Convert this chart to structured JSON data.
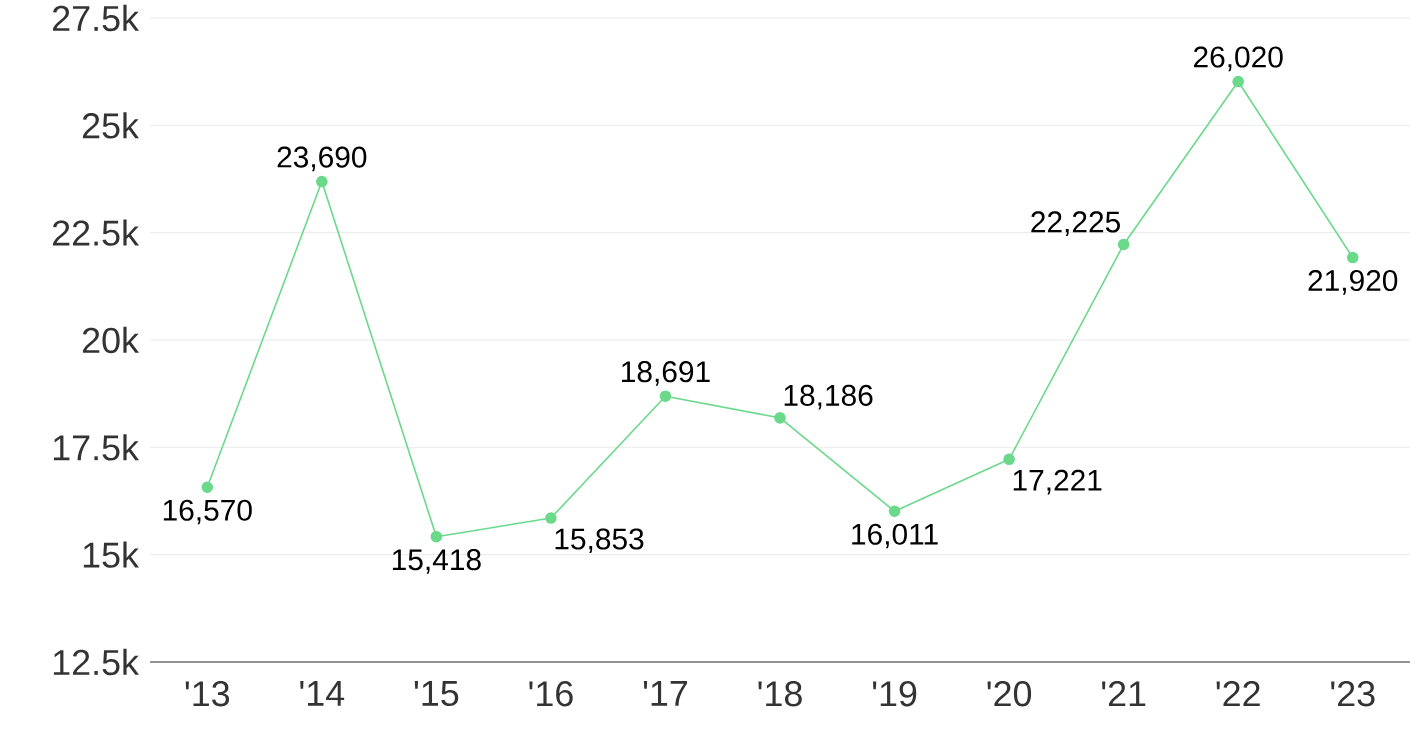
{
  "chart_data": {
    "type": "line",
    "categories": [
      "'13",
      "'14",
      "'15",
      "'16",
      "'17",
      "'18",
      "'19",
      "'20",
      "'21",
      "'22",
      "'23"
    ],
    "values": [
      16570,
      23690,
      15418,
      15853,
      18691,
      18186,
      16011,
      17221,
      22225,
      26020,
      21920
    ],
    "value_labels": [
      "16,570",
      "23,690",
      "15,418",
      "15,853",
      "18,691",
      "18,186",
      "16,011",
      "17,221",
      "22,225",
      "26,020",
      "21,920"
    ],
    "color": "#6ad98a",
    "marker": "circle",
    "line_style": "solid",
    "grid": "y",
    "ylim": [
      12500,
      27500
    ],
    "yticks": [
      {
        "value": 12500,
        "label": "12.5k"
      },
      {
        "value": 15000,
        "label": "15k"
      },
      {
        "value": 17500,
        "label": "17.5k"
      },
      {
        "value": 20000,
        "label": "20k"
      },
      {
        "value": 22500,
        "label": "22.5k"
      },
      {
        "value": 25000,
        "label": "25k"
      },
      {
        "value": 27500,
        "label": "27.5k"
      }
    ]
  }
}
